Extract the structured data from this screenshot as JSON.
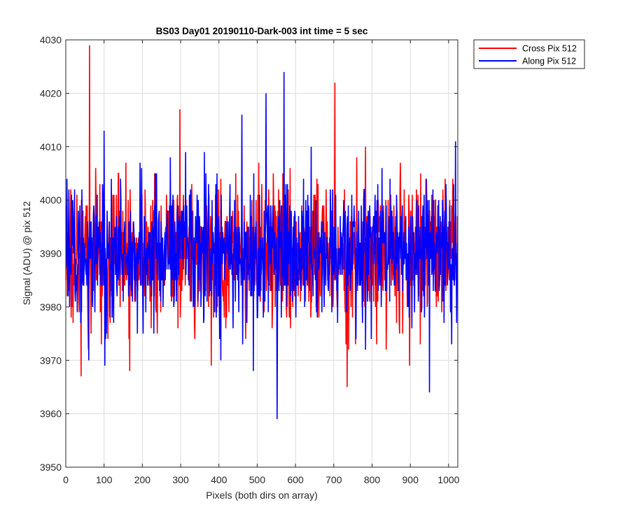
{
  "chart_data": {
    "type": "line",
    "title": "BS03 Day01 20190110-Dark-003 int time = 5 sec",
    "xlabel": "Pixels (both dirs on array)",
    "ylabel": "Signal (ADU) @ pix 512",
    "xlim": [
      0,
      1024
    ],
    "ylim": [
      3950,
      4030
    ],
    "xticks": [
      0,
      100,
      200,
      300,
      400,
      500,
      600,
      700,
      800,
      900,
      1000
    ],
    "yticks": [
      3950,
      3960,
      3970,
      3980,
      3990,
      4000,
      4010,
      4020,
      4030
    ],
    "grid": true,
    "legend": "outside-top-right",
    "series": [
      {
        "name": "Cross Pix 512",
        "color": "#ff0000",
        "n_points": 1024,
        "mean": 3990,
        "std": 6.5,
        "min": 3965,
        "max": 4029,
        "peaks": [
          [
            40,
            3967
          ],
          [
            62,
            4029
          ],
          [
            167,
            3968
          ],
          [
            298,
            4017
          ],
          [
            380,
            3969
          ],
          [
            703,
            4022
          ],
          [
            735,
            3965
          ],
          [
            898,
            3969
          ]
        ]
      },
      {
        "name": "Along Pix 512",
        "color": "#0000ff",
        "n_points": 1024,
        "mean": 3990,
        "std": 6.5,
        "min": 3959,
        "max": 4024,
        "peaks": [
          [
            100,
            4013
          ],
          [
            460,
            4016
          ],
          [
            490,
            3968
          ],
          [
            523,
            4020
          ],
          [
            552,
            3959
          ],
          [
            570,
            4024
          ],
          [
            950,
            3964
          ],
          [
            1018,
            4011
          ]
        ]
      }
    ]
  }
}
